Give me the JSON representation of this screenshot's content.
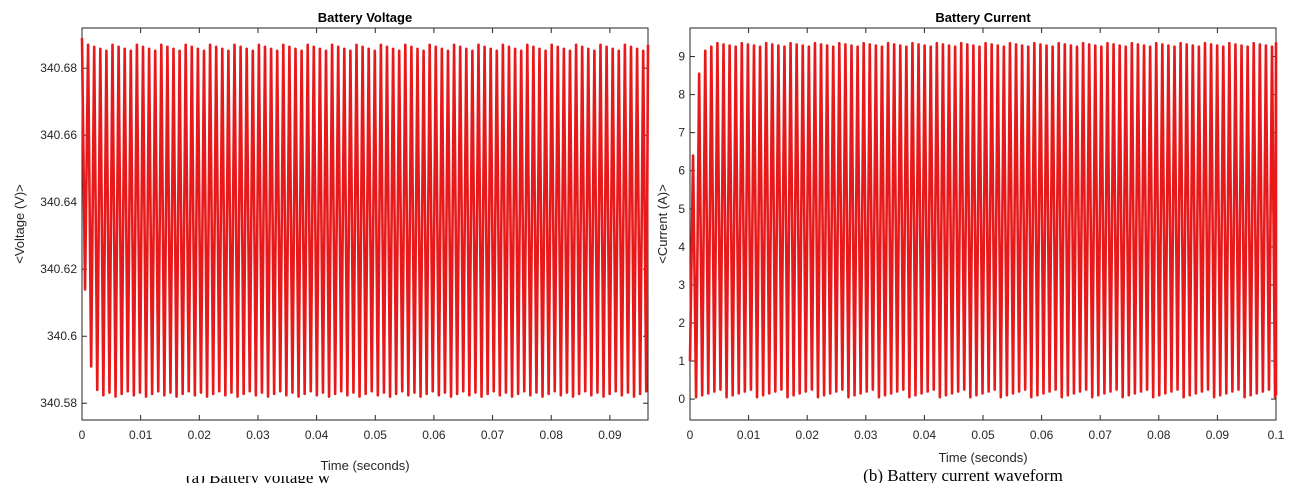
{
  "chart_data": [
    {
      "type": "line",
      "title": "Battery Voltage",
      "xlabel": "Time (seconds)",
      "ylabel": "<Voltage (V)>",
      "xlim": [
        0,
        0.0965
      ],
      "ylim": [
        340.575,
        340.692
      ],
      "xticks": [
        0,
        0.01,
        0.02,
        0.03,
        0.04,
        0.05,
        0.06,
        0.07,
        0.08,
        0.09
      ],
      "xtick_labels": [
        "0",
        "0.01",
        "0.02",
        "0.03",
        "0.04",
        "0.05",
        "0.06",
        "0.07",
        "0.08",
        "0.09"
      ],
      "yticks": [
        340.58,
        340.6,
        340.62,
        340.64,
        340.66,
        340.68
      ],
      "ytick_labels": [
        "340.58",
        "340.6",
        "340.62",
        "340.64",
        "340.66",
        "340.68"
      ],
      "grid": false,
      "series": [
        {
          "color": "#e8191a",
          "x_start": 0,
          "period": 0.00104,
          "num_cycles": 93,
          "start_value": 340.689,
          "initial_minimums": [
            340.614,
            340.591,
            340.584
          ],
          "minimum": 340.582,
          "maximum": 340.687
        }
      ],
      "caption": "(a) Battery voltage waveform"
    },
    {
      "type": "line",
      "title": "Battery Current",
      "xlabel": "Time (seconds)",
      "ylabel": "<Current (A)>",
      "xlim": [
        0,
        0.1
      ],
      "ylim": [
        -0.55,
        9.75
      ],
      "xticks": [
        0,
        0.01,
        0.02,
        0.03,
        0.04,
        0.05,
        0.06,
        0.07,
        0.08,
        0.09,
        0.1
      ],
      "xtick_labels": [
        "0",
        "0.01",
        "0.02",
        "0.03",
        "0.04",
        "0.05",
        "0.06",
        "0.07",
        "0.08",
        "0.09",
        "0.1"
      ],
      "yticks": [
        0,
        1,
        2,
        3,
        4,
        5,
        6,
        7,
        8,
        9
      ],
      "ytick_labels": [
        "0",
        "1",
        "2",
        "3",
        "4",
        "5",
        "6",
        "7",
        "8",
        "9"
      ],
      "grid": false,
      "series": [
        {
          "color": "#e8191a",
          "x_start": 0,
          "period": 0.00104,
          "num_cycles": 97,
          "start_value": 1.0,
          "initial_peaks": [
            6.4,
            8.55,
            9.15
          ],
          "minimum": 0.05,
          "maximum": 9.35
        }
      ],
      "caption": "(b) Battery current waveform"
    }
  ]
}
